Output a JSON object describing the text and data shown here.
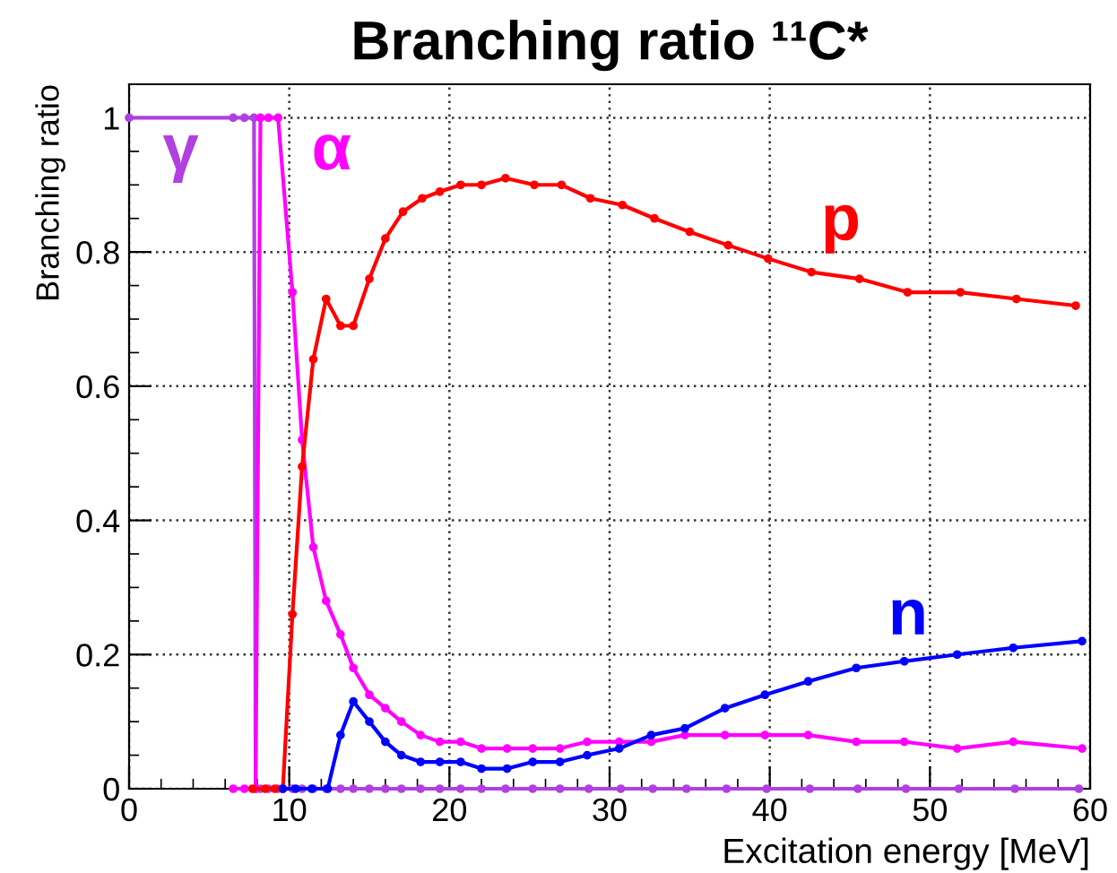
{
  "chart_data": {
    "type": "line",
    "title": "Branching ratio ¹¹C*",
    "xlabel": "Excitation energy [MeV]",
    "ylabel": "Branching ratio",
    "xlim": [
      0,
      60
    ],
    "ylim": [
      0,
      1.05
    ],
    "xticks": [
      0,
      10,
      20,
      30,
      40,
      50,
      60
    ],
    "yticks": [
      0,
      0.2,
      0.4,
      0.6,
      0.8,
      1
    ],
    "grid": true,
    "legend": false,
    "marker": "circle",
    "line_style": "solid",
    "series": [
      {
        "name": "γ",
        "color": "#b040e0",
        "x": [
          0,
          6.5,
          7.2,
          7.8,
          7.9,
          8.2,
          8.7,
          9.3,
          10.2,
          10.8,
          11.5,
          12.3,
          13.2,
          14.0,
          15.0,
          16.0,
          17.0,
          18.2,
          19.4,
          20.7,
          22.0,
          23.5,
          25.2,
          26.9,
          28.7,
          30.7,
          32.7,
          34.8,
          37.3,
          39.8,
          42.5,
          45.5,
          48.5,
          51.8,
          55.3,
          59.3
        ],
        "values": [
          1,
          1,
          1,
          1,
          0,
          0,
          0,
          0,
          0,
          0,
          0,
          0,
          0,
          0,
          0,
          0,
          0,
          0,
          0,
          0,
          0,
          0,
          0,
          0,
          0,
          0,
          0,
          0,
          0,
          0,
          0,
          0,
          0,
          0,
          0,
          0
        ]
      },
      {
        "name": "α",
        "color": "#ff00ff",
        "x": [
          6.5,
          7.2,
          7.9,
          8.2,
          8.7,
          9.3,
          10.2,
          10.8,
          11.5,
          12.3,
          13.2,
          14.0,
          15.0,
          16.0,
          17.0,
          18.2,
          19.4,
          20.7,
          22.0,
          23.6,
          25.2,
          26.9,
          28.6,
          30.6,
          32.6,
          34.7,
          37.2,
          39.7,
          42.4,
          45.4,
          48.4,
          51.7,
          55.2,
          59.5
        ],
        "values": [
          0,
          0,
          0,
          1,
          1,
          1,
          0.74,
          0.52,
          0.36,
          0.28,
          0.23,
          0.18,
          0.14,
          0.12,
          0.1,
          0.08,
          0.07,
          0.07,
          0.06,
          0.06,
          0.06,
          0.06,
          0.07,
          0.07,
          0.07,
          0.08,
          0.08,
          0.08,
          0.08,
          0.07,
          0.07,
          0.06,
          0.07,
          0.06
        ]
      },
      {
        "name": "p",
        "color": "#ff0000",
        "x": [
          7.7,
          8.5,
          9.1,
          9.6,
          10.2,
          10.8,
          11.5,
          12.3,
          13.2,
          14.0,
          15.0,
          16.0,
          17.1,
          18.3,
          19.4,
          20.7,
          22.0,
          23.5,
          25.3,
          27.0,
          28.8,
          30.8,
          32.8,
          35.0,
          37.4,
          39.9,
          42.6,
          45.6,
          48.6,
          51.9,
          55.4,
          59.1
        ],
        "values": [
          0,
          0,
          0,
          0,
          0.26,
          0.48,
          0.64,
          0.73,
          0.69,
          0.69,
          0.76,
          0.82,
          0.86,
          0.88,
          0.89,
          0.9,
          0.9,
          0.91,
          0.9,
          0.9,
          0.88,
          0.87,
          0.85,
          0.83,
          0.81,
          0.79,
          0.77,
          0.76,
          0.74,
          0.74,
          0.73,
          0.72
        ]
      },
      {
        "name": "n",
        "color": "#0000ff",
        "x": [
          9.6,
          10.4,
          11.4,
          12.4,
          13.2,
          14.0,
          15.0,
          16.0,
          17.0,
          18.2,
          19.4,
          20.7,
          22.0,
          23.6,
          25.2,
          26.9,
          28.6,
          30.6,
          32.6,
          34.7,
          37.2,
          39.7,
          42.4,
          45.4,
          48.4,
          51.7,
          55.2,
          59.5
        ],
        "values": [
          0,
          0,
          0,
          0,
          0.08,
          0.13,
          0.1,
          0.07,
          0.05,
          0.04,
          0.04,
          0.04,
          0.03,
          0.03,
          0.04,
          0.04,
          0.05,
          0.06,
          0.08,
          0.09,
          0.12,
          0.14,
          0.16,
          0.18,
          0.19,
          0.2,
          0.21,
          0.22
        ]
      }
    ]
  }
}
